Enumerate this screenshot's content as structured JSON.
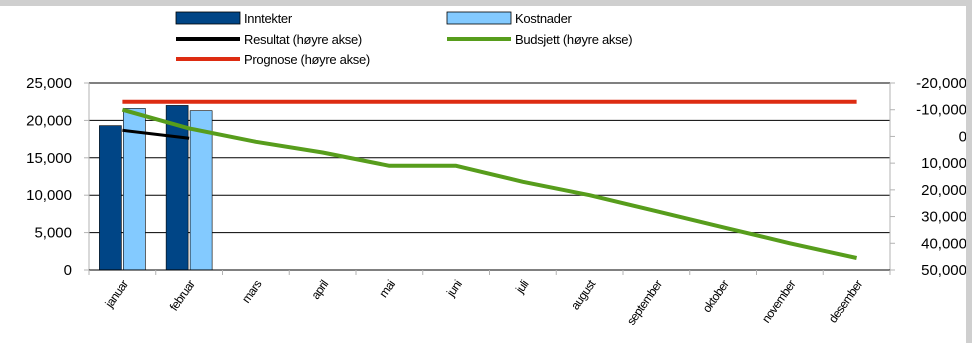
{
  "chart_data": {
    "type": "bar",
    "categories": [
      "januar",
      "februar",
      "mars",
      "april",
      "mai",
      "juni",
      "juli",
      "august",
      "september",
      "oktober",
      "november",
      "desember"
    ],
    "bar_series": [
      {
        "name": "Inntekter",
        "values": [
          19300,
          22000,
          null,
          null,
          null,
          null,
          null,
          null,
          null,
          null,
          null,
          null
        ],
        "color": "#004586"
      },
      {
        "name": "Kostnader",
        "values": [
          21600,
          21300,
          null,
          null,
          null,
          null,
          null,
          null,
          null,
          null,
          null,
          null
        ],
        "color": "#83caff"
      }
    ],
    "line_series": [
      {
        "name": "Resultat (høyre akse)",
        "axis": "right",
        "values": [
          -2300,
          700,
          null,
          null,
          null,
          null,
          null,
          null,
          null,
          null,
          null,
          null
        ],
        "color": "#000000"
      },
      {
        "name": "Budsjett (høyre akse)",
        "axis": "right",
        "values": [
          -10000,
          -3000,
          2000,
          6000,
          11000,
          11000,
          17000,
          22000,
          28000,
          34000,
          40000,
          45500
        ],
        "color": "#579d1c"
      },
      {
        "name": "Prognose (høyre akse)",
        "axis": "right",
        "values": [
          -13000,
          -13000,
          -13000,
          -13000,
          -13000,
          -13000,
          -13000,
          -13000,
          -13000,
          -13000,
          -13000,
          -13000
        ],
        "color": "#dd2c12"
      }
    ],
    "left_axis": {
      "min": 0,
      "max": 25000,
      "ticks": [
        "0",
        "5,000",
        "10,000",
        "15,000",
        "20,000",
        "25,000"
      ]
    },
    "right_axis": {
      "min": -20000,
      "max": 50000,
      "reversed": true,
      "ticks": [
        "-20,000",
        "-10,000",
        "0",
        "10,000",
        "20,000",
        "30,000",
        "40,000",
        "50,000"
      ]
    },
    "grid": true,
    "legend_position": "top"
  }
}
